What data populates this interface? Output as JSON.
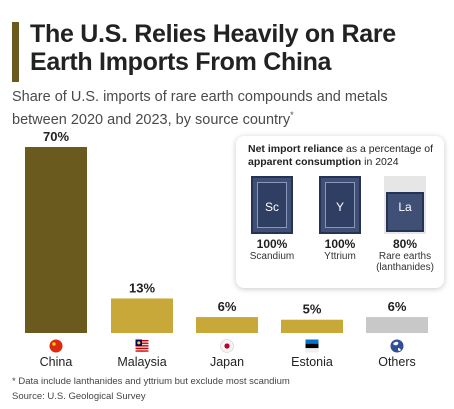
{
  "header": {
    "title": "The U.S. Relies Heavily on Rare Earth Imports From China",
    "subtitle": "Share of U.S. imports of rare earth compounds and metals between 2020 and 2023, by source country",
    "subtitle_mark": "*"
  },
  "colors": {
    "accent": "#6b5a1e",
    "bar_china": "#6b5a1e",
    "bar_others": "#c9a83a",
    "bar_last": "#c8c8c8",
    "element_box": "#3f4f75"
  },
  "chart_data": {
    "type": "bar",
    "categories": [
      "China",
      "Malaysia",
      "Japan",
      "Estonia",
      "Others"
    ],
    "values": [
      70,
      13,
      6,
      5,
      6
    ],
    "value_labels": [
      "70%",
      "13%",
      "6%",
      "5%",
      "6%"
    ],
    "icons": [
      "china-flag-icon",
      "malaysia-flag-icon",
      "japan-flag-icon",
      "estonia-flag-icon",
      "globe-icon"
    ],
    "title": "",
    "xlabel": "",
    "ylabel": "",
    "ylim": [
      0,
      75
    ],
    "grid": false,
    "legend": "none"
  },
  "inset": {
    "heading_bold_1": "Net import reliance",
    "heading_text": "as a percentage of",
    "heading_bold_2": "apparent consumption",
    "heading_year": "in 2024",
    "elements": [
      {
        "symbol": "Sc",
        "percent": "100%",
        "name": "Scandium",
        "reliance": 100
      },
      {
        "symbol": "Y",
        "percent": "100%",
        "name": "Yttrium",
        "reliance": 100
      },
      {
        "symbol": "La",
        "percent": "80%",
        "name": "Rare earths (lanthanides)",
        "reliance": 80
      }
    ]
  },
  "footer": {
    "footnote": "* Data include lanthanides and yttrium but exclude most scandium",
    "source": "Source: U.S. Geological Survey"
  }
}
